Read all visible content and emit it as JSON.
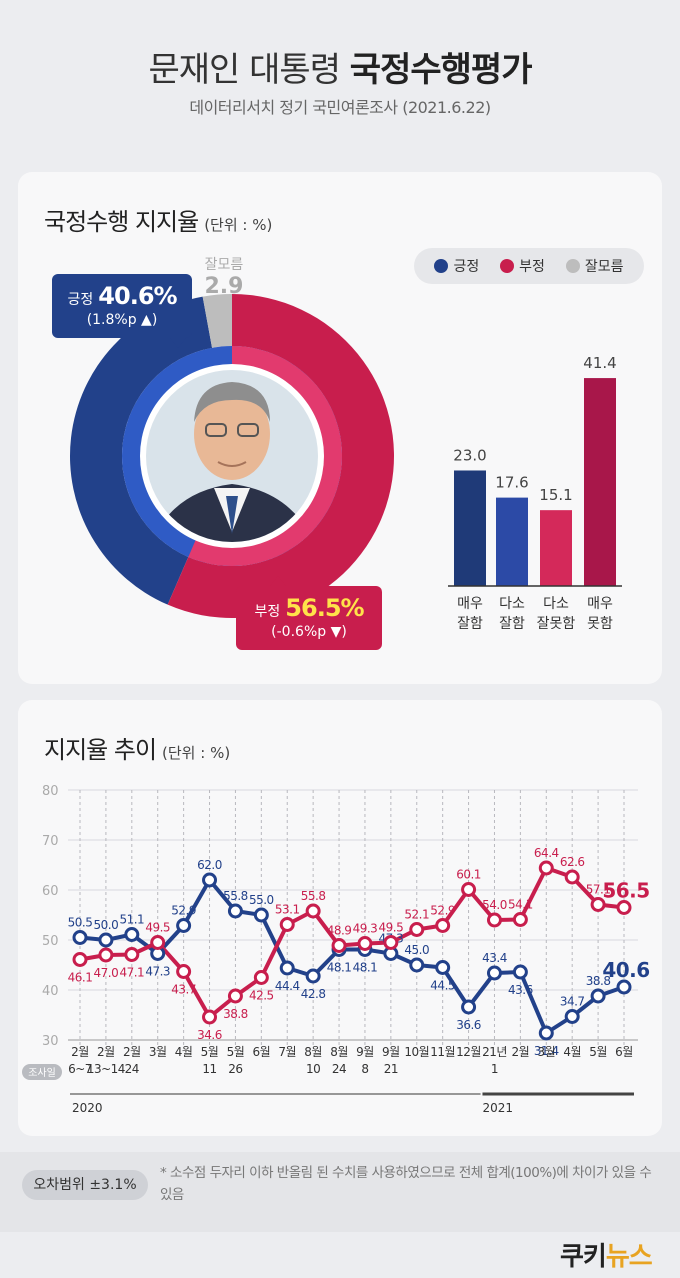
{
  "header": {
    "title_regular": "문재인 대통령 ",
    "title_bold": "국정수행평가",
    "subtitle": "데이터리서치 정기 국민여론조사 (2021.6.22)"
  },
  "colors": {
    "positive": "#22418a",
    "negative": "#c81e4d",
    "dontknow": "#bdbdbd",
    "bar_very_good": "#1f3a78",
    "bar_somewhat_good": "#2c4aa6",
    "bar_somewhat_bad": "#d4295a",
    "bar_very_bad": "#a8174a"
  },
  "approval": {
    "section_title": "국정수행 지지율",
    "unit": "(단위 : %)",
    "legend": [
      "긍정",
      "부정",
      "잘모름"
    ],
    "positive": {
      "label": "긍정",
      "value": "40.6%",
      "change": "(1.8%p ▲)"
    },
    "negative": {
      "label": "부정",
      "value": "56.5%",
      "change": "(-0.6%p ▼)"
    },
    "dontknow": {
      "label": "잘모름",
      "value": "2.9"
    }
  },
  "trend": {
    "section_title": "지지율 추이",
    "unit": "(단위 : %)",
    "survey_date_label": "조사일",
    "year_labels": [
      "2020",
      "2021"
    ]
  },
  "footer": {
    "margin_label": "오차범위 ±3.1%",
    "note": "* 소수점 두자리 이하 반올림 된 수치를 사용하였으므로 전체 합계(100%)에 차이가 있을 수 있음"
  },
  "logo": {
    "part1": "쿠키",
    "part2": "뉴스"
  },
  "chart_data": [
    {
      "type": "pie",
      "variant": "donut",
      "categories": [
        "긍정",
        "부정",
        "잘모름"
      ],
      "values": [
        40.6,
        56.5,
        2.9
      ]
    },
    {
      "type": "bar",
      "categories": [
        "매우 잘함",
        "다소 잘함",
        "다소 잘못함",
        "매우 못함"
      ],
      "category_lines": [
        [
          "매우",
          "잘함"
        ],
        [
          "다소",
          "잘함"
        ],
        [
          "다소",
          "잘못함"
        ],
        [
          "매우",
          "못함"
        ]
      ],
      "values": [
        23.0,
        17.6,
        15.1,
        41.4
      ],
      "value_labels": [
        "23.0",
        "17.6",
        "15.1",
        "41.4"
      ],
      "ylim": [
        0,
        45
      ]
    },
    {
      "type": "line",
      "ylim": [
        30,
        80
      ],
      "yticks": [
        30,
        40,
        50,
        60,
        70,
        80
      ],
      "grid": true,
      "x_lines": [
        [
          "2월",
          "6~7"
        ],
        [
          "2월",
          "13~14"
        ],
        [
          "2월",
          "24"
        ],
        [
          "3월",
          ""
        ],
        [
          "4월",
          ""
        ],
        [
          "5월",
          "11"
        ],
        [
          "5월",
          "26"
        ],
        [
          "6월",
          ""
        ],
        [
          "7월",
          ""
        ],
        [
          "8월",
          "10"
        ],
        [
          "8월",
          "24"
        ],
        [
          "9월",
          "8"
        ],
        [
          "9월",
          "21"
        ],
        [
          "10월",
          ""
        ],
        [
          "11월",
          ""
        ],
        [
          "12월",
          ""
        ],
        [
          "21년",
          "1"
        ],
        [
          "2월",
          ""
        ],
        [
          "3월",
          ""
        ],
        [
          "4월",
          ""
        ],
        [
          "5월",
          ""
        ],
        [
          "6월",
          ""
        ]
      ],
      "series": [
        {
          "name": "긍정",
          "values": [
            50.5,
            50.0,
            51.1,
            47.3,
            52.9,
            62.0,
            55.8,
            55.0,
            44.4,
            42.8,
            48.1,
            48.1,
            47.3,
            45.0,
            44.5,
            36.6,
            43.4,
            43.6,
            31.4,
            34.7,
            38.8,
            40.6
          ],
          "labels": [
            "50.5",
            "50.0",
            "51.1",
            "47.3",
            "52.9",
            "62.0",
            "55.8",
            "55.0",
            "44.4",
            "42.8",
            "48.1",
            "48.1",
            "47.3",
            "45.0",
            "44.5",
            "36.6",
            "43.4",
            "43.6",
            "31.4",
            "34.7",
            "38.8",
            "40.6"
          ]
        },
        {
          "name": "부정",
          "values": [
            46.1,
            47.0,
            47.1,
            49.5,
            43.7,
            34.6,
            38.8,
            42.5,
            53.1,
            55.8,
            48.9,
            49.3,
            49.5,
            52.1,
            52.9,
            60.1,
            54.0,
            54.1,
            64.4,
            62.6,
            57.1,
            56.5
          ],
          "labels": [
            "46.1",
            "47.0",
            "47.1",
            "49.5",
            "43.7",
            "34.6",
            "38.8",
            "42.5",
            "53.1",
            "55.8",
            "48.9",
            "49.3",
            "49.5",
            "52.1",
            "52.9",
            "60.1",
            "54.0",
            "54.1",
            "64.4",
            "62.6",
            "57.1",
            "56.5"
          ]
        }
      ]
    }
  ]
}
